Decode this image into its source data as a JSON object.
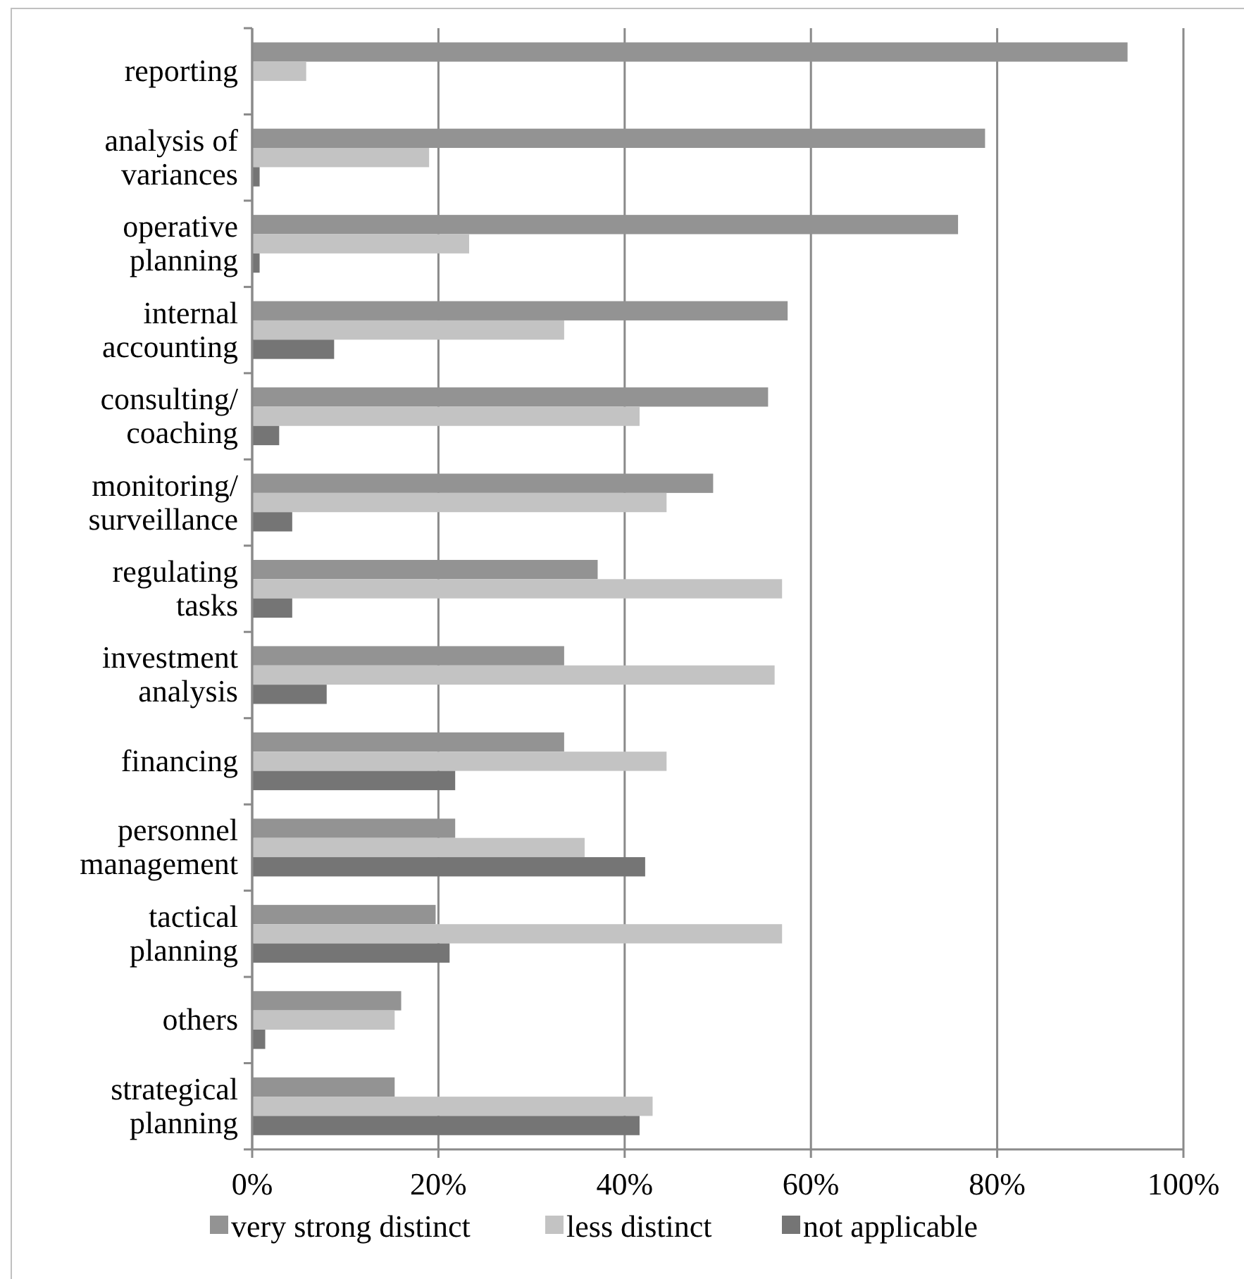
{
  "chart_data": {
    "type": "bar",
    "orientation": "horizontal",
    "categories": [
      "reporting",
      "analysis of variances",
      "operative planning",
      "internal accounting",
      "consulting/ coaching",
      "monitoring/ surveillance",
      "regulating tasks",
      "investment analysis",
      "financing",
      "personnel management",
      "tactical planning",
      "others",
      "strategical planning"
    ],
    "series": [
      {
        "name": "very strong distinct",
        "color": "#939393",
        "values": [
          94.0,
          78.7,
          75.8,
          57.5,
          55.4,
          49.5,
          37.1,
          33.5,
          33.5,
          21.8,
          19.7,
          16.0,
          15.3
        ]
      },
      {
        "name": "less distinct",
        "color": "#c3c3c3",
        "values": [
          5.8,
          19.0,
          23.3,
          33.5,
          41.6,
          44.5,
          56.9,
          56.1,
          44.5,
          35.7,
          56.9,
          15.3,
          43.0
        ]
      },
      {
        "name": "not applicable",
        "color": "#757575",
        "values": [
          0,
          0.8,
          0.8,
          8.8,
          2.9,
          4.3,
          4.3,
          8.0,
          21.8,
          42.2,
          21.2,
          1.4,
          41.6
        ]
      }
    ],
    "xlim": [
      0,
      100
    ],
    "xticks": [
      {
        "value": 0,
        "label": "0%"
      },
      {
        "value": 20,
        "label": "20%"
      },
      {
        "value": 40,
        "label": "40%"
      },
      {
        "value": 60,
        "label": "60%"
      },
      {
        "value": 80,
        "label": "80%"
      },
      {
        "value": 100,
        "label": "100%"
      }
    ],
    "grid": "x",
    "legend": "bottom"
  }
}
